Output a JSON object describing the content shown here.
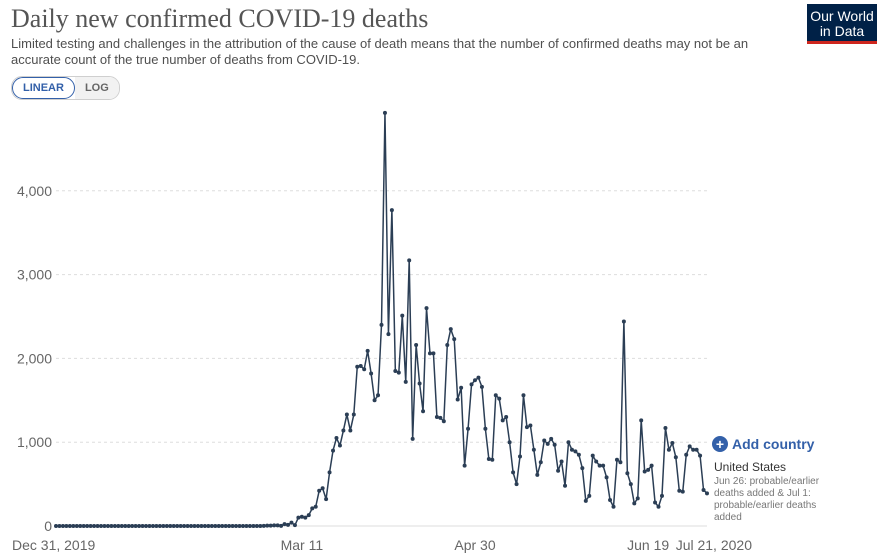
{
  "header": {
    "title": "Daily new confirmed COVID-19 deaths",
    "subtitle": "Limited testing and challenges in the attribution of the cause of death means that the number of confirmed deaths may not be an accurate count of the true number of deaths from COVID-19.",
    "logo_line1": "Our World",
    "logo_line2": "in Data"
  },
  "controls": {
    "linear_label": "LINEAR",
    "log_label": "LOG",
    "add_country_label": "Add country"
  },
  "legend": {
    "entity": "United States",
    "note": "Jun 26: probable/earlier deaths added & Jul 1: probable/earlier deaths added"
  },
  "colors": {
    "series": "#2b3e55",
    "grid": "#dddddd",
    "accent": "#3360a9",
    "logo_bg": "#002147",
    "logo_bar": "#ce261e"
  },
  "chart_data": {
    "type": "line",
    "title": "Daily new confirmed COVID-19 deaths",
    "y_ticks": [
      0,
      1000,
      2000,
      3000,
      4000
    ],
    "y_tick_labels": [
      "0",
      "1,000",
      "2,000",
      "3,000",
      "4,000"
    ],
    "x_tick_labels": [
      "Dec 31, 2019",
      "Mar 11",
      "Apr 30",
      "Jun 19",
      "Jul 21, 2020"
    ],
    "ylim": [
      0,
      4900
    ],
    "grid": "horizontal dashed",
    "series": [
      {
        "name": "United States",
        "start_date": "2019-12-31",
        "values": [
          0,
          0,
          0,
          0,
          0,
          0,
          0,
          0,
          0,
          0,
          0,
          0,
          0,
          0,
          0,
          0,
          0,
          0,
          0,
          0,
          0,
          0,
          0,
          0,
          0,
          0,
          0,
          0,
          0,
          0,
          0,
          0,
          0,
          0,
          0,
          0,
          0,
          0,
          0,
          0,
          0,
          0,
          0,
          0,
          0,
          0,
          0,
          0,
          0,
          0,
          0,
          0,
          0,
          0,
          0,
          0,
          0,
          0,
          0,
          0,
          1,
          5,
          4,
          8,
          7,
          2,
          23,
          14,
          40,
          10,
          100,
          110,
          100,
          130,
          210,
          230,
          420,
          450,
          320,
          640,
          900,
          1050,
          960,
          1140,
          1330,
          1140,
          1330,
          1900,
          1910,
          1870,
          2090,
          1820,
          1500,
          1560,
          2400,
          4930,
          2290,
          3770,
          1850,
          1830,
          2510,
          1720,
          3170,
          1040,
          2160,
          1700,
          1370,
          2600,
          2060,
          2060,
          1300,
          1290,
          1250,
          2160,
          2350,
          2230,
          1510,
          1650,
          720,
          1160,
          1690,
          1740,
          1770,
          1660,
          1160,
          800,
          790,
          1560,
          1520,
          1260,
          1300,
          1000,
          640,
          500,
          830,
          1560,
          1180,
          1200,
          910,
          610,
          760,
          1020,
          980,
          1040,
          970,
          660,
          770,
          480,
          1000,
          910,
          890,
          850,
          690,
          300,
          360,
          840,
          770,
          720,
          720,
          580,
          310,
          230,
          790,
          760,
          2440,
          630,
          500,
          270,
          330,
          1260,
          650,
          670,
          720,
          280,
          230,
          360,
          1170,
          910,
          990,
          820,
          420,
          410,
          850,
          950,
          910,
          910,
          840,
          430,
          390
        ]
      }
    ]
  }
}
